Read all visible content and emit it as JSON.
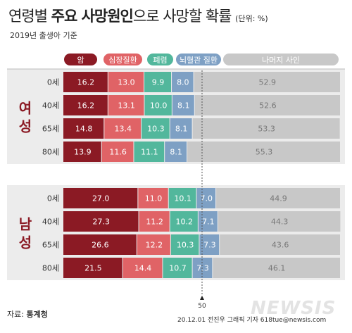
{
  "title": {
    "prefix": "연령별 ",
    "bold": "주요 사망원인",
    "suffix": "으로 사망할 확률",
    "unit": "(단위: %)"
  },
  "subtitle": "2019년 출생아 기준",
  "source": {
    "label": "자료: ",
    "name": "통계청"
  },
  "credit": "20.12.01 전진우 그래픽 기자 618tue@newsis.com",
  "watermark": "NEWSIS",
  "colors": {
    "cancer": "#8b1a24",
    "heart": "#e06366",
    "pneumonia": "#52b79c",
    "cerebro": "#7ea0c4",
    "rest": "#c8c8c8",
    "group_label": "#8b1a24"
  },
  "chart_data": {
    "type": "bar",
    "stacked": true,
    "orientation": "horizontal",
    "xlim": [
      0,
      100
    ],
    "reference_line": 50,
    "reference_label": "50",
    "legend": [
      "암",
      "심장질환",
      "폐렴",
      "뇌혈관 질환",
      "나머지 사인"
    ],
    "groups": [
      {
        "name": "여성",
        "categories": [
          "0세",
          "40세",
          "65세",
          "80세"
        ],
        "series": [
          {
            "name": "암",
            "values": [
              16.2,
              16.2,
              14.8,
              13.9
            ]
          },
          {
            "name": "심장질환",
            "values": [
              13.0,
              13.1,
              13.4,
              11.6
            ]
          },
          {
            "name": "폐렴",
            "values": [
              9.9,
              10.0,
              10.3,
              11.1
            ]
          },
          {
            "name": "뇌혈관 질환",
            "values": [
              8.0,
              8.1,
              8.1,
              8.1
            ]
          },
          {
            "name": "나머지 사인",
            "values": [
              52.9,
              52.6,
              53.3,
              55.3
            ]
          }
        ]
      },
      {
        "name": "남성",
        "categories": [
          "0세",
          "40세",
          "65세",
          "80세"
        ],
        "series": [
          {
            "name": "암",
            "values": [
              27.0,
              27.3,
              26.6,
              21.5
            ]
          },
          {
            "name": "심장질환",
            "values": [
              11.0,
              11.2,
              12.2,
              14.4
            ]
          },
          {
            "name": "폐렴",
            "values": [
              10.1,
              10.2,
              10.3,
              10.7
            ]
          },
          {
            "name": "뇌혈관 질환",
            "values": [
              7.0,
              7.1,
              7.3,
              7.3
            ]
          },
          {
            "name": "나머지 사인",
            "values": [
              44.9,
              44.3,
              43.6,
              46.1
            ]
          }
        ]
      }
    ]
  }
}
